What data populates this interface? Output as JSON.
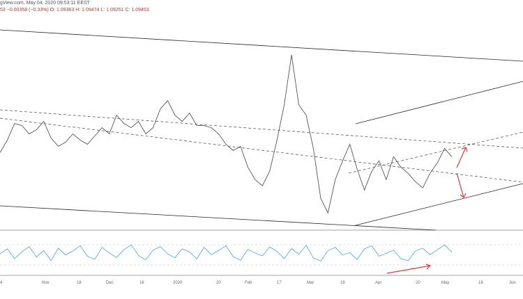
{
  "header": {
    "line1": "gView.com, May 04, 2020 09:53:11 EEST",
    "line2": "53  −0.00358 (−0.33%)  O: 1.09363  H: 1.09474  L: 1.09251  C: 1.09453"
  },
  "colors": {
    "price": "#555555",
    "oscillator": "#42a5f5",
    "annotation": "#e53935",
    "trendline": "#222222",
    "grid": "#e5e5e5"
  },
  "chart_data": [
    {
      "type": "line",
      "title": "",
      "x_tick_labels": [
        "4",
        "Nov",
        "18",
        "Dec",
        "16",
        "2020",
        "20",
        "Feb",
        "17",
        "Mar",
        "16",
        "Apr",
        "20",
        "May",
        "18",
        "Jun"
      ],
      "series": [
        {
          "values": [
            1.095,
            1.101,
            1.109,
            1.108,
            1.104,
            1.106,
            1.11,
            1.102,
            1.098,
            1.1,
            1.104,
            1.101,
            1.099,
            1.103,
            1.107,
            1.104,
            1.113,
            1.109,
            1.107,
            1.11,
            1.104,
            1.107,
            1.116,
            1.12,
            1.113,
            1.11,
            1.114,
            1.108,
            1.108,
            1.107,
            1.104,
            1.099,
            1.096,
            1.098,
            1.088,
            1.082,
            1.079,
            1.086,
            1.101,
            1.118,
            1.142,
            1.118,
            1.113,
            1.097,
            1.073,
            1.066,
            1.082,
            1.091,
            1.099,
            1.087,
            1.077,
            1.086,
            1.091,
            1.082,
            1.093,
            1.088,
            1.085,
            1.081,
            1.078,
            1.085,
            1.09,
            1.097,
            1.093
          ]
        },
        {
          "values": [
            50,
            62,
            38,
            55,
            68,
            42,
            58,
            33,
            64,
            47,
            57,
            70,
            44,
            36,
            66,
            52,
            41,
            60,
            72,
            46,
            35,
            59,
            68,
            50,
            40,
            62,
            55,
            37,
            66,
            48,
            58,
            70,
            43,
            34,
            61,
            52,
            45,
            67,
            56,
            38,
            63,
            49,
            71,
            40,
            32,
            58,
            66,
            47,
            53,
            36,
            62,
            70,
            44,
            51,
            59,
            38,
            33,
            57,
            64,
            48,
            60,
            72,
            54
          ]
        }
      ]
    }
  ]
}
